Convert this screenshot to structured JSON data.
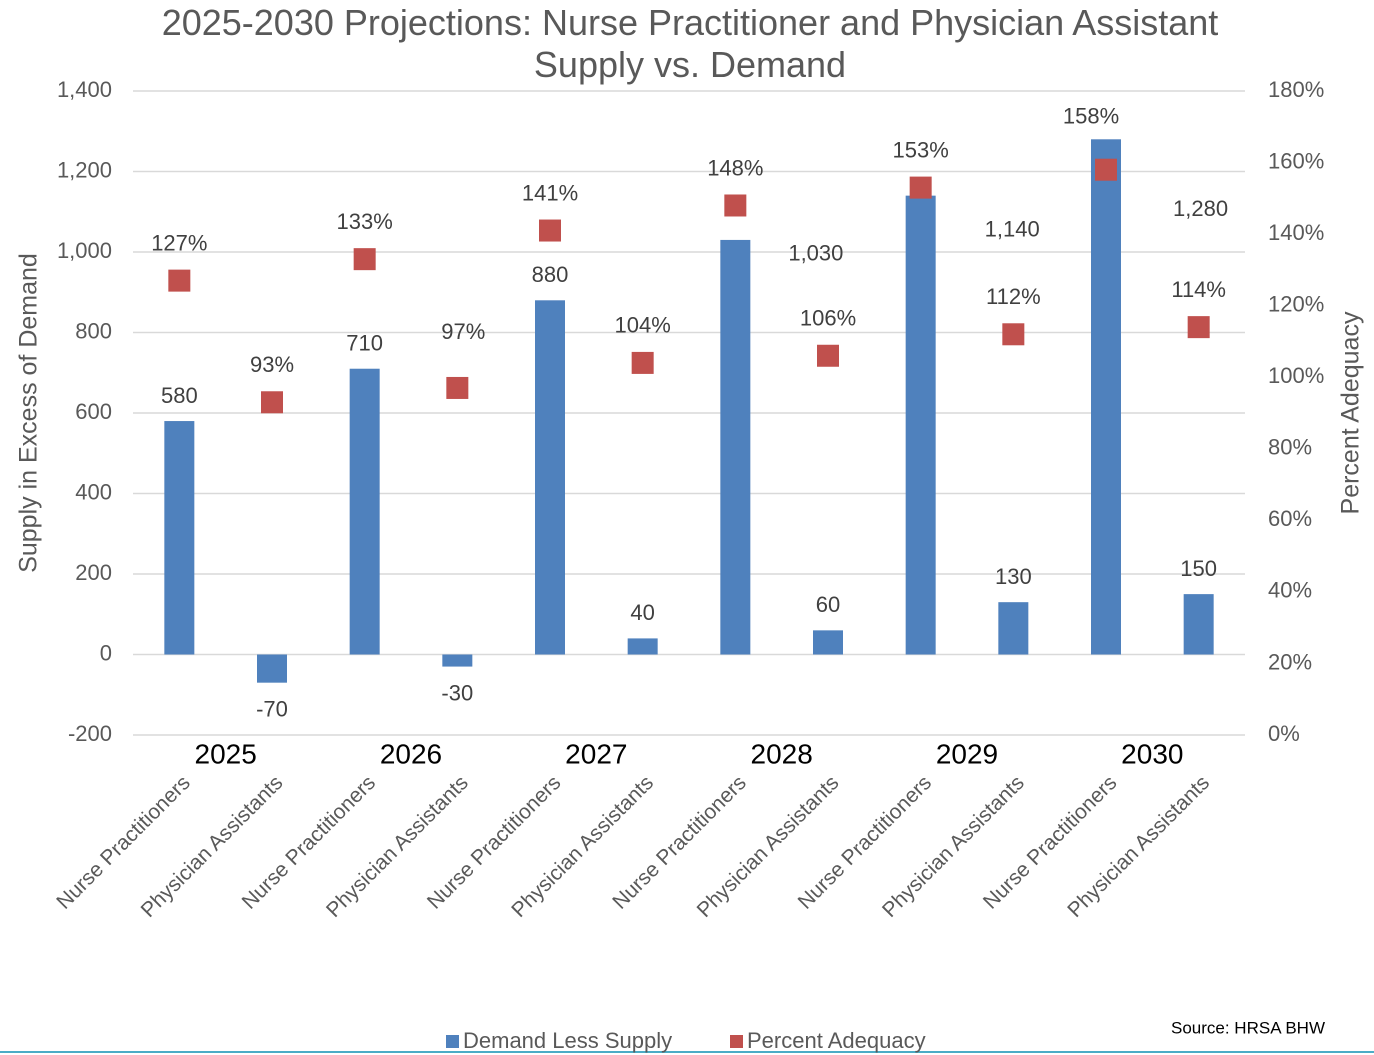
{
  "chart_data": {
    "type": "bar",
    "title": "2025-2030 Projections: Nurse Practitioner and Physician Assistant Supply vs. Demand",
    "ylabel": "Supply in Excess of Demand",
    "y2label": "Percent Adequacy",
    "source": "Source: HRSA BHW",
    "groups": [
      "2025",
      "2026",
      "2027",
      "2028",
      "2029",
      "2030"
    ],
    "categories": [
      "Nurse Practitioners",
      "Physician Assistants",
      "Nurse Practitioners",
      "Physician Assistants",
      "Nurse Practitioners",
      "Physician Assistants",
      "Nurse Practitioners",
      "Physician Assistants",
      "Nurse Practitioners",
      "Physician Assistants",
      "Nurse Practitioners",
      "Physician Assistants"
    ],
    "series": [
      {
        "name": "Demand Less Supply",
        "type": "bar",
        "color": "#4f81bd",
        "values": [
          580,
          -70,
          710,
          -30,
          880,
          40,
          1030,
          60,
          1140,
          130,
          1280,
          150
        ],
        "value_labels": [
          "580",
          "-70",
          "710",
          "-30",
          "880",
          "40",
          "1,030",
          "60",
          "1,140",
          "130",
          "1,280",
          "150"
        ]
      },
      {
        "name": "Percent Adequacy",
        "type": "scatter",
        "axis": "y2",
        "color": "#c0504d",
        "values": [
          127,
          93,
          133,
          97,
          141,
          104,
          148,
          106,
          153,
          112,
          158,
          114
        ],
        "value_labels": [
          "127%",
          "93%",
          "133%",
          "97%",
          "141%",
          "104%",
          "148%",
          "106%",
          "153%",
          "112%",
          "158%",
          "114%"
        ]
      }
    ],
    "ylim": [
      -200,
      1400
    ],
    "yticks": [
      -200,
      0,
      200,
      400,
      600,
      800,
      {
        "value": 1000,
        "label": "1,000"
      },
      {
        "value": 1200,
        "label": "1,200"
      },
      {
        "value": 1400,
        "label": "1,400"
      }
    ],
    "y2lim": [
      0,
      180
    ],
    "y2ticks": [
      {
        "value": 0,
        "label": "0%"
      },
      {
        "value": 20,
        "label": "20%"
      },
      {
        "value": 40,
        "label": "40%"
      },
      {
        "value": 60,
        "label": "60%"
      },
      {
        "value": 80,
        "label": "80%"
      },
      {
        "value": 100,
        "label": "100%"
      },
      {
        "value": 120,
        "label": "120%"
      },
      {
        "value": 140,
        "label": "140%"
      },
      {
        "value": 160,
        "label": "160%"
      },
      {
        "value": 180,
        "label": "180%"
      }
    ],
    "grid": true,
    "legend": "bottom"
  }
}
